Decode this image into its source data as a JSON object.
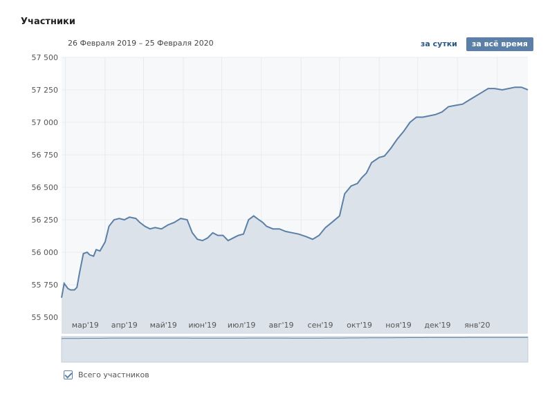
{
  "header": {
    "title": "Участники"
  },
  "range": {
    "label": "26 Февраля 2019 – 25 Февраля 2020"
  },
  "period": {
    "day_label": "за сутки",
    "all_label": "за всё время"
  },
  "legend": {
    "label": "Всего участников",
    "checked": true
  },
  "colors": {
    "line": "#5b7fa6",
    "fill": "#dbe2ea",
    "grid": "#e8ebee",
    "button": "#5b7fa6"
  },
  "chart_data": {
    "type": "area",
    "title": "",
    "xlabel": "",
    "ylabel": "",
    "ylim": [
      55500,
      57500
    ],
    "yticks": [
      55500,
      55750,
      56000,
      56250,
      56500,
      56750,
      57000,
      57250,
      57500
    ],
    "ytick_labels": [
      "55 500",
      "55 750",
      "56 000",
      "56 250",
      "56 500",
      "56 750",
      "57 000",
      "57 250",
      "57 500"
    ],
    "xticks": [
      "мар'19",
      "апр'19",
      "май'19",
      "июн'19",
      "июл'19",
      "авг'19",
      "сен'19",
      "окт'19",
      "ноя'19",
      "дек'19",
      "янв'20"
    ],
    "grid": true,
    "series": [
      {
        "name": "Всего участников",
        "x": [
          "2019-02-26",
          "2019-02-28",
          "2019-03-03",
          "2019-03-05",
          "2019-03-08",
          "2019-03-10",
          "2019-03-12",
          "2019-03-15",
          "2019-03-18",
          "2019-03-20",
          "2019-03-23",
          "2019-03-25",
          "2019-03-28",
          "2019-04-01",
          "2019-04-04",
          "2019-04-08",
          "2019-04-12",
          "2019-04-16",
          "2019-04-20",
          "2019-04-25",
          "2019-04-28",
          "2019-05-02",
          "2019-05-06",
          "2019-05-10",
          "2019-05-15",
          "2019-05-20",
          "2019-05-25",
          "2019-05-30",
          "2019-06-04",
          "2019-06-08",
          "2019-06-12",
          "2019-06-16",
          "2019-06-20",
          "2019-06-24",
          "2019-06-28",
          "2019-07-02",
          "2019-07-06",
          "2019-07-10",
          "2019-07-14",
          "2019-07-18",
          "2019-07-22",
          "2019-07-26",
          "2019-07-30",
          "2019-08-02",
          "2019-08-05",
          "2019-08-10",
          "2019-08-15",
          "2019-08-20",
          "2019-08-25",
          "2019-08-30",
          "2019-09-05",
          "2019-09-10",
          "2019-09-15",
          "2019-09-20",
          "2019-09-25",
          "2019-10-01",
          "2019-10-05",
          "2019-10-10",
          "2019-10-15",
          "2019-10-18",
          "2019-10-22",
          "2019-10-26",
          "2019-10-29",
          "2019-11-01",
          "2019-11-05",
          "2019-11-10",
          "2019-11-15",
          "2019-11-20",
          "2019-11-25",
          "2019-11-30",
          "2019-12-05",
          "2019-12-10",
          "2019-12-15",
          "2019-12-20",
          "2019-12-25",
          "2019-12-30",
          "2020-01-05",
          "2020-01-10",
          "2020-01-15",
          "2020-01-20",
          "2020-01-25",
          "2020-01-30",
          "2020-02-05",
          "2020-02-10",
          "2020-02-15",
          "2020-02-20",
          "2020-02-25"
        ],
        "values": [
          55650,
          55760,
          55720,
          55710,
          55710,
          55730,
          55840,
          55990,
          56000,
          55980,
          55970,
          56020,
          56010,
          56080,
          56200,
          56250,
          56260,
          56250,
          56270,
          56260,
          56230,
          56200,
          56180,
          56190,
          56180,
          56210,
          56230,
          56260,
          56250,
          56150,
          56100,
          56090,
          56110,
          56150,
          56130,
          56130,
          56090,
          56110,
          56130,
          56140,
          56250,
          56280,
          56250,
          56230,
          56200,
          56180,
          56180,
          56160,
          56150,
          56140,
          56120,
          56100,
          56130,
          56190,
          56230,
          56280,
          56450,
          56510,
          56530,
          56570,
          56610,
          56690,
          56710,
          56730,
          56740,
          56800,
          56870,
          56930,
          57000,
          57040,
          57040,
          57050,
          57060,
          57080,
          57120,
          57130,
          57140,
          57170,
          57200,
          57230,
          57260,
          57260,
          57250,
          57260,
          57270,
          57270,
          57250
        ]
      }
    ]
  }
}
